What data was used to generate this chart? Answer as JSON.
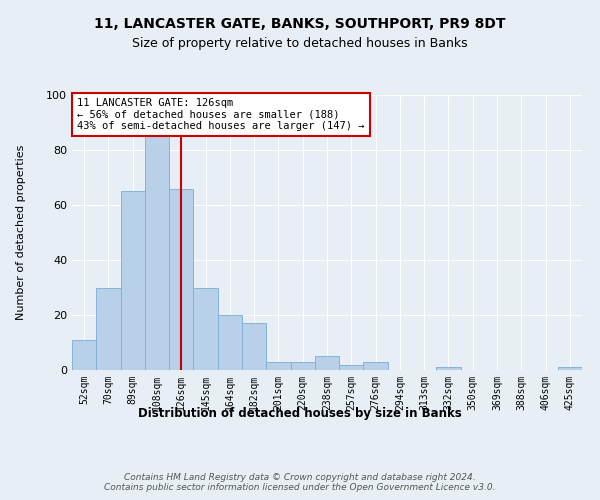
{
  "title1": "11, LANCASTER GATE, BANKS, SOUTHPORT, PR9 8DT",
  "title2": "Size of property relative to detached houses in Banks",
  "xlabel": "Distribution of detached houses by size in Banks",
  "ylabel": "Number of detached properties",
  "bin_labels": [
    "52sqm",
    "70sqm",
    "89sqm",
    "108sqm",
    "126sqm",
    "145sqm",
    "164sqm",
    "182sqm",
    "201sqm",
    "220sqm",
    "238sqm",
    "257sqm",
    "276sqm",
    "294sqm",
    "313sqm",
    "332sqm",
    "350sqm",
    "369sqm",
    "388sqm",
    "406sqm",
    "425sqm"
  ],
  "bar_heights": [
    11,
    30,
    65,
    85,
    66,
    30,
    20,
    17,
    3,
    3,
    5,
    2,
    3,
    0,
    0,
    1,
    0,
    0,
    0,
    0,
    1
  ],
  "bar_color": "#b8d0e8",
  "bar_edge_color": "#7aaed6",
  "vline_color": "#cc0000",
  "annotation_text": "11 LANCASTER GATE: 126sqm\n← 56% of detached houses are smaller (188)\n43% of semi-detached houses are larger (147) →",
  "annotation_box_color": "#ffffff",
  "annotation_box_edge": "#cc0000",
  "ylim": [
    0,
    100
  ],
  "yticks": [
    0,
    20,
    40,
    60,
    80,
    100
  ],
  "footer": "Contains HM Land Registry data © Crown copyright and database right 2024.\nContains public sector information licensed under the Open Government Licence v3.0.",
  "bg_color": "#e8eef5",
  "plot_bg_color": "#e8eef5"
}
